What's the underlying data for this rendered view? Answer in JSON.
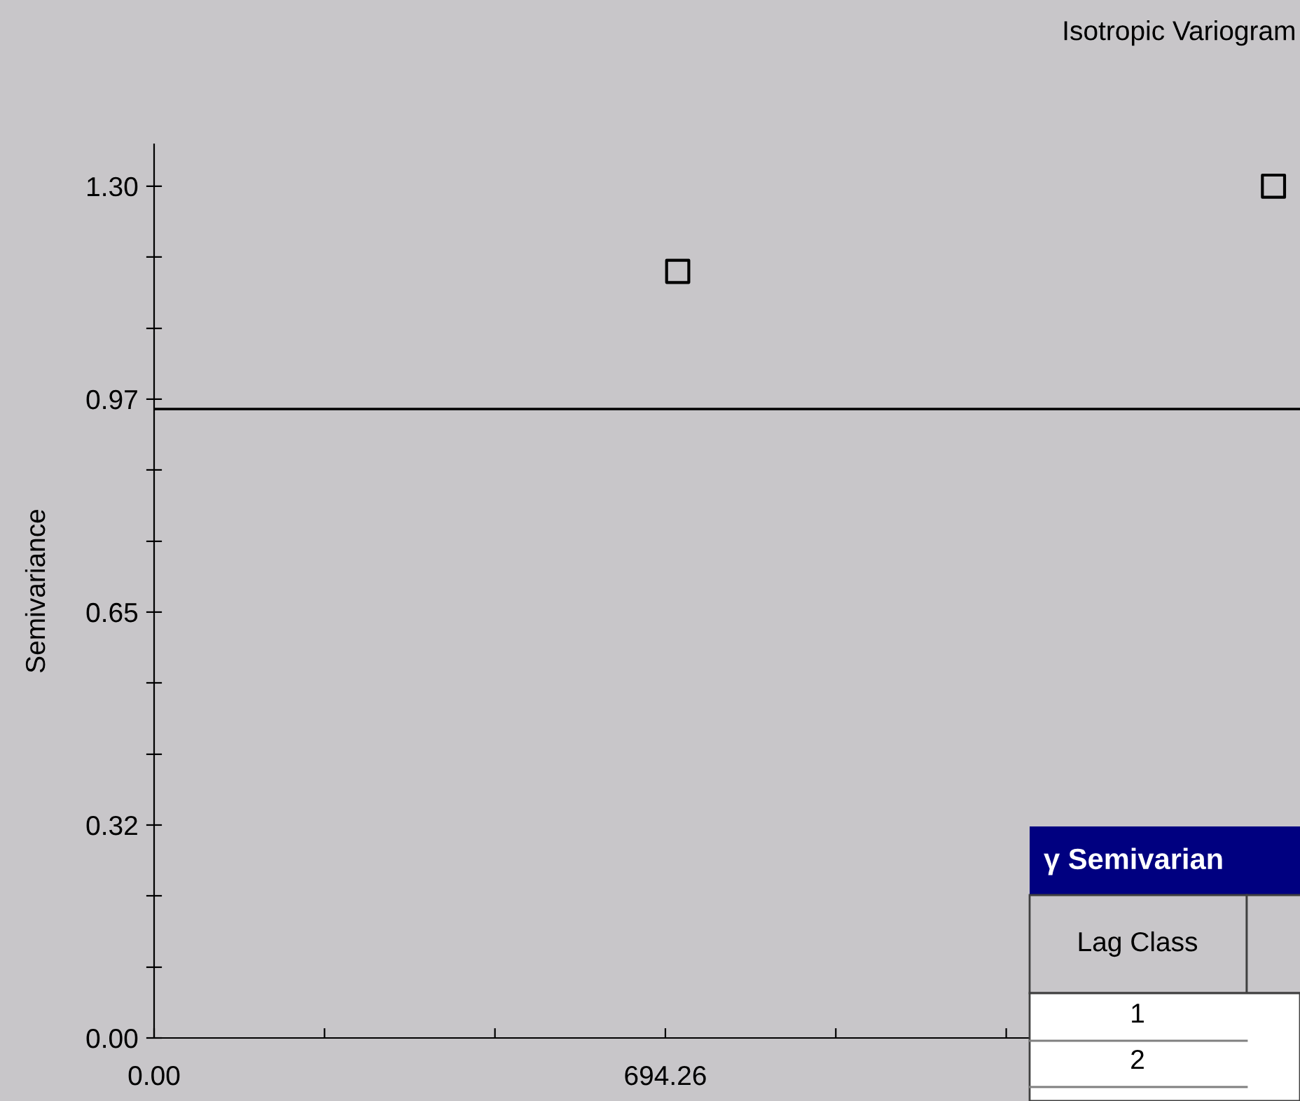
{
  "chart_data": {
    "type": "scatter",
    "title": "Isotropic Variogram",
    "ylabel": "Semivariance",
    "x": [
      711,
      1520
    ],
    "series": [
      {
        "color": "#000000",
        "values": [
          1.17,
          1.3
        ]
      }
    ],
    "marker": "square",
    "xlim": [
      0,
      1556
    ],
    "ylim": [
      0,
      1.364
    ],
    "xticks": [
      {
        "value": 0,
        "label": "0.00"
      },
      {
        "value": 231.42,
        "label": null
      },
      {
        "value": 462.84,
        "label": null
      },
      694.26,
      {
        "value": 925.68,
        "label": null
      },
      {
        "value": 1157.1,
        "label": null
      }
    ],
    "yticks": [
      {
        "value": 0,
        "label": "0.00"
      },
      {
        "value": 0.108,
        "label": null
      },
      {
        "value": 0.217,
        "label": null
      },
      {
        "value": 0.325,
        "label": "0.32"
      },
      {
        "value": 0.433,
        "label": null
      },
      {
        "value": 0.542,
        "label": null
      },
      {
        "value": 0.65,
        "label": "0.65"
      },
      {
        "value": 0.758,
        "label": null
      },
      {
        "value": 0.867,
        "label": null
      },
      {
        "value": 0.975,
        "label": "0.97"
      },
      {
        "value": 1.083,
        "label": null
      },
      {
        "value": 1.192,
        "label": null
      },
      {
        "value": 1.3,
        "label": "1.30"
      }
    ],
    "ref_lines": [
      {
        "axis": "y",
        "value": 0.96,
        "color": "#000000"
      }
    ],
    "grid": false,
    "annotations": [
      "γ Semivarian",
      "Lag Class",
      "1",
      "2"
    ]
  }
}
